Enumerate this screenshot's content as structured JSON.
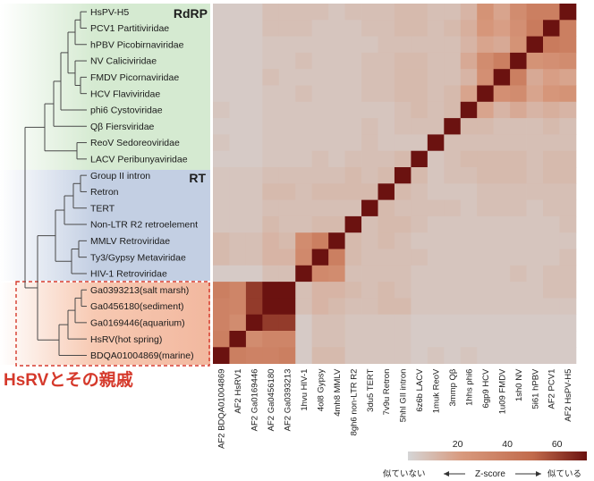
{
  "chart_data": {
    "type": "heatmap",
    "groups": [
      {
        "label": "RdRP",
        "color": "#d5ead1",
        "rows": [
          0,
          9
        ]
      },
      {
        "label": "RT",
        "color": "#c3cfe3",
        "rows": [
          10,
          16
        ]
      },
      {
        "label": "",
        "color": "#f5c3ac",
        "rows": [
          17,
          21
        ]
      }
    ],
    "row_labels": [
      "HsPV-H5",
      "PCV1 Partitiviridae",
      "hPBV Picobirnaviridae",
      "NV Caliciviridae",
      "FMDV Picornaviridae",
      "HCV Flaviviridae",
      "phi6 Cystoviridae",
      "Qβ Fiersviridae",
      "ReoV Sedoreoviridae",
      "LACV Peribunyaviridae",
      "Group II intron",
      "Retron",
      "TERT",
      "Non-LTR R2 retroelement",
      "MMLV Retroviridae",
      "Ty3/Gypsy Metaviridae",
      "HIV-1 Retroviridae",
      "Ga0393213(salt marsh)",
      "Ga0456180(sediment)",
      "Ga0169446(aquarium)",
      "HsRV(hot spring)",
      "BDQA01004869(marine)"
    ],
    "column_labels": [
      "AF2 BDQA01004869",
      "AF2 HsRV1",
      "AF2 Ga0169446",
      "AF2 Ga0456180",
      "AF2 Ga0393213",
      "1hvu HIV-1",
      "4ol8 Gypsy",
      "4mh8 MMLV",
      "8gh6 non-LTR R2",
      "3du5 TERT",
      "7v9u Retron",
      "5hhl GII intron",
      "6z6b LACV",
      "1muk ReoV",
      "3mmp Qβ",
      "1hhs phi6",
      "6gp9 HCV",
      "1u09 FMDV",
      "1sh0 NV",
      "5i61 hPBV",
      "AF2 PCV1",
      "AF2 HsPV-H5"
    ],
    "values": [
      [
        4,
        4,
        4,
        8,
        8,
        8,
        8,
        6,
        8,
        8,
        8,
        10,
        10,
        8,
        8,
        12,
        26,
        18,
        30,
        38,
        38,
        72
      ],
      [
        4,
        4,
        4,
        8,
        8,
        8,
        6,
        6,
        6,
        8,
        8,
        10,
        10,
        8,
        10,
        14,
        24,
        20,
        28,
        40,
        72,
        38
      ],
      [
        4,
        4,
        4,
        6,
        6,
        6,
        6,
        6,
        6,
        6,
        8,
        8,
        8,
        8,
        8,
        12,
        18,
        16,
        26,
        72,
        40,
        38
      ],
      [
        4,
        4,
        4,
        6,
        6,
        8,
        6,
        6,
        6,
        8,
        8,
        10,
        10,
        8,
        8,
        16,
        30,
        38,
        72,
        26,
        28,
        30
      ],
      [
        4,
        4,
        4,
        8,
        6,
        6,
        6,
        6,
        6,
        8,
        8,
        10,
        10,
        8,
        8,
        12,
        28,
        72,
        38,
        16,
        20,
        18
      ],
      [
        4,
        4,
        4,
        6,
        6,
        8,
        6,
        6,
        6,
        8,
        8,
        10,
        10,
        8,
        10,
        18,
        72,
        28,
        30,
        18,
        24,
        26
      ],
      [
        6,
        4,
        4,
        6,
        6,
        6,
        6,
        6,
        6,
        6,
        6,
        8,
        10,
        8,
        10,
        72,
        18,
        12,
        16,
        12,
        14,
        12
      ],
      [
        4,
        4,
        4,
        6,
        6,
        6,
        6,
        6,
        6,
        8,
        6,
        8,
        8,
        8,
        72,
        10,
        10,
        8,
        8,
        8,
        10,
        8
      ],
      [
        6,
        4,
        4,
        6,
        6,
        6,
        6,
        6,
        6,
        8,
        6,
        6,
        6,
        72,
        8,
        8,
        8,
        8,
        8,
        8,
        8,
        8
      ],
      [
        4,
        4,
        4,
        6,
        6,
        6,
        8,
        6,
        8,
        8,
        8,
        10,
        72,
        6,
        8,
        10,
        10,
        10,
        10,
        8,
        10,
        10
      ],
      [
        6,
        6,
        6,
        8,
        8,
        8,
        8,
        8,
        10,
        8,
        10,
        72,
        10,
        6,
        8,
        8,
        10,
        10,
        10,
        8,
        10,
        10
      ],
      [
        6,
        6,
        6,
        10,
        10,
        8,
        10,
        10,
        10,
        10,
        72,
        10,
        8,
        6,
        6,
        6,
        8,
        8,
        8,
        8,
        8,
        8
      ],
      [
        6,
        6,
        6,
        8,
        8,
        8,
        8,
        8,
        8,
        72,
        10,
        8,
        8,
        8,
        8,
        6,
        8,
        8,
        8,
        6,
        8,
        8
      ],
      [
        6,
        6,
        6,
        10,
        8,
        8,
        10,
        10,
        72,
        8,
        10,
        10,
        8,
        6,
        6,
        6,
        6,
        6,
        6,
        6,
        6,
        8
      ],
      [
        10,
        8,
        8,
        12,
        10,
        30,
        38,
        72,
        10,
        8,
        10,
        8,
        6,
        6,
        6,
        6,
        6,
        6,
        6,
        6,
        6,
        6
      ],
      [
        10,
        8,
        8,
        12,
        12,
        32,
        72,
        38,
        10,
        8,
        8,
        8,
        8,
        6,
        6,
        6,
        6,
        6,
        6,
        6,
        6,
        8
      ],
      [
        4,
        4,
        4,
        8,
        8,
        72,
        32,
        30,
        8,
        8,
        8,
        8,
        6,
        6,
        6,
        6,
        6,
        6,
        8,
        6,
        8,
        8
      ],
      [
        38,
        34,
        62,
        72,
        72,
        8,
        12,
        12,
        10,
        8,
        10,
        8,
        6,
        6,
        6,
        6,
        6,
        6,
        6,
        6,
        8,
        8
      ],
      [
        36,
        34,
        62,
        72,
        72,
        8,
        12,
        10,
        8,
        8,
        10,
        10,
        6,
        6,
        6,
        6,
        6,
        6,
        6,
        6,
        6,
        6
      ],
      [
        36,
        30,
        72,
        62,
        62,
        4,
        8,
        8,
        6,
        6,
        6,
        6,
        4,
        4,
        4,
        4,
        4,
        4,
        4,
        4,
        4,
        4
      ],
      [
        38,
        72,
        30,
        34,
        34,
        4,
        8,
        8,
        6,
        6,
        6,
        6,
        4,
        4,
        4,
        4,
        4,
        4,
        4,
        4,
        4,
        4
      ],
      [
        72,
        38,
        36,
        36,
        38,
        4,
        10,
        10,
        6,
        6,
        6,
        6,
        4,
        6,
        4,
        6,
        4,
        4,
        4,
        4,
        4,
        4
      ]
    ],
    "colorbar": {
      "ticks": [
        20,
        40,
        60
      ],
      "range": [
        0,
        72
      ],
      "left_label": "似ていない",
      "title": "Z-score",
      "right_label": "似ている",
      "colors": [
        "#d5d5d6",
        "#d89a7e",
        "#c16a4b",
        "#6b1210"
      ]
    },
    "highlight": "HsRVとその親戚"
  }
}
